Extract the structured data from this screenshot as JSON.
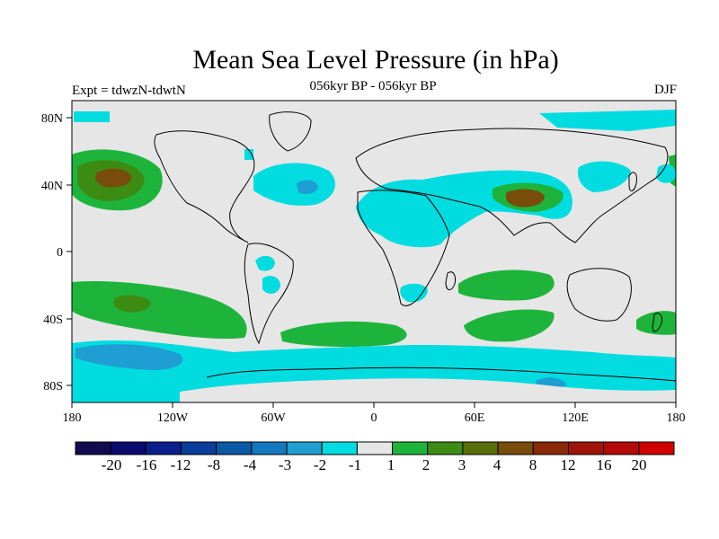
{
  "title": "Mean Sea Level Pressure (in hPa)",
  "subtitle": "056kyr BP - 056kyr BP",
  "left_label": "Expt = tdwzN-tdwtN",
  "right_label": "DJF",
  "lat_ticks": [
    "80N",
    "40N",
    "0",
    "40S",
    "80S"
  ],
  "lon_ticks": [
    "180",
    "120W",
    "60W",
    "0",
    "60E",
    "120E",
    "180"
  ],
  "colorbar": {
    "colors": [
      "#140a50",
      "#0a0a6e",
      "#0a1e8c",
      "#0a3c9a",
      "#0a5aa8",
      "#1478c0",
      "#1e9ed2",
      "#00dce0",
      "#e6e6e6",
      "#1eb43c",
      "#3c8c14",
      "#5a6e0a",
      "#784c0a",
      "#8c280a",
      "#a0140a",
      "#b40a0a",
      "#d20000"
    ],
    "labels": [
      "-20",
      "-16",
      "-12",
      "-8",
      "-4",
      "-3",
      "-2",
      "-1",
      "1",
      "2",
      "3",
      "4",
      "8",
      "12",
      "16",
      "20"
    ]
  },
  "map": {
    "background_color": "#e6e6e6"
  }
}
